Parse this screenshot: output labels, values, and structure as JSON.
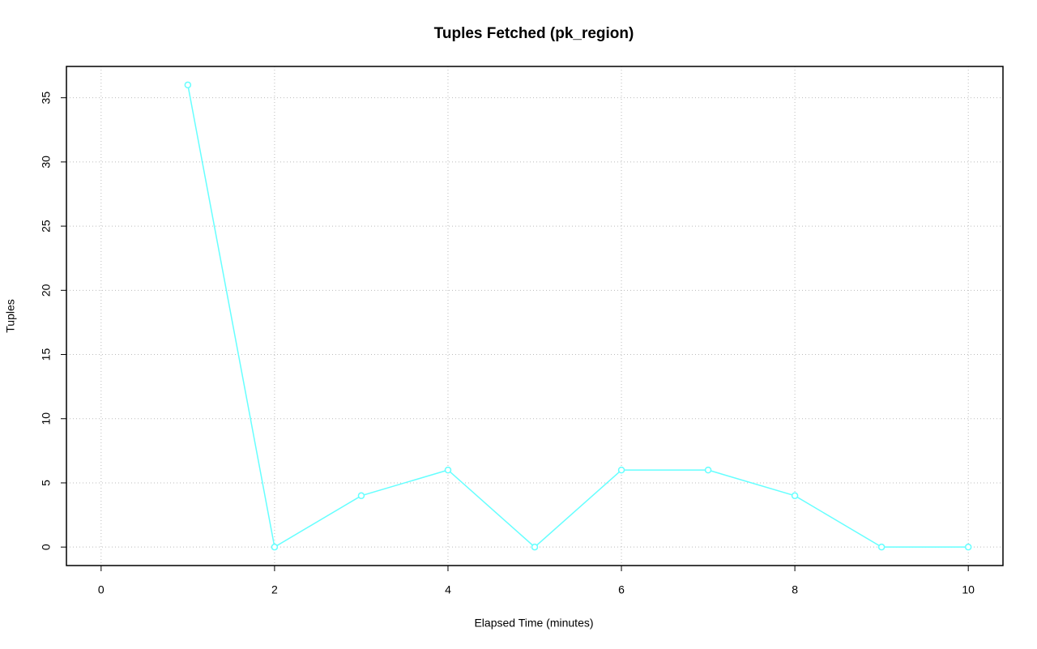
{
  "chart_data": {
    "type": "line",
    "title": "Tuples Fetched (pk_region)",
    "x_label": "Elapsed Time (minutes)",
    "y_label": "Tuples",
    "x": [
      1,
      2,
      3,
      4,
      5,
      6,
      7,
      8,
      9,
      10
    ],
    "series": [
      {
        "name": "pk_region",
        "color": "#66ffff",
        "values": [
          36,
          0,
          4,
          6,
          0,
          6,
          6,
          4,
          0,
          0
        ]
      }
    ],
    "xlim": [
      -0.4,
      10.4
    ],
    "ylim": [
      -1.44,
      37.44
    ],
    "xticks": [
      0,
      2,
      4,
      6,
      8,
      10
    ],
    "yticks": [
      0,
      5,
      10,
      15,
      20,
      25,
      30,
      35
    ],
    "grid": true
  }
}
